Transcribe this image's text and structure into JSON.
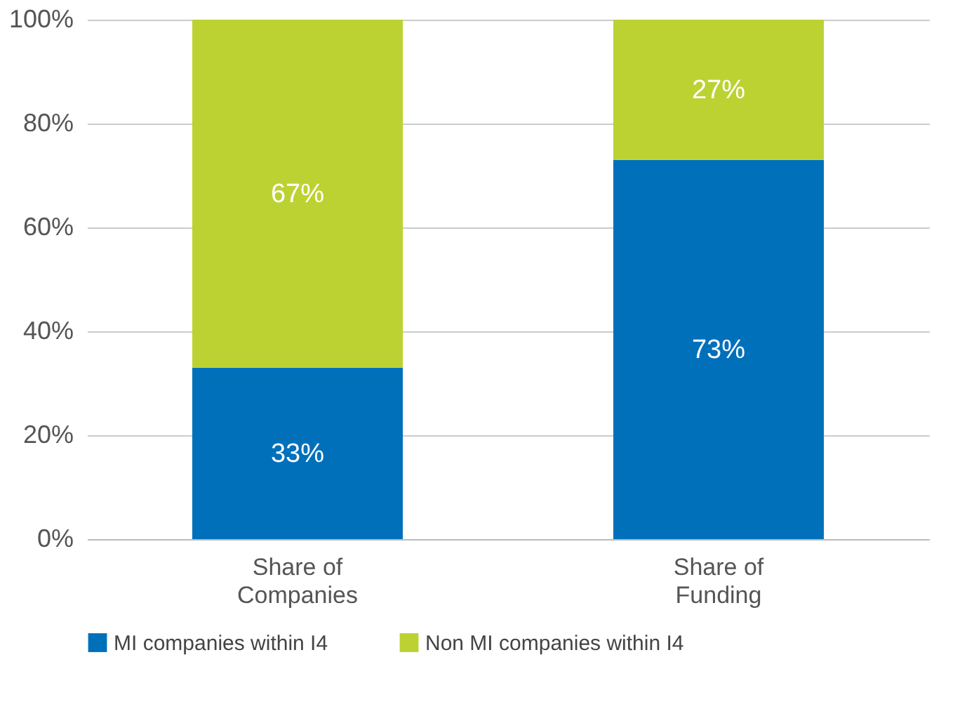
{
  "chart_data": {
    "type": "bar",
    "stacked": true,
    "categories": [
      "Share of Companies",
      "Share of Funding"
    ],
    "series": [
      {
        "name": "MI companies within I4",
        "color": "#0070bb",
        "values": [
          33,
          73
        ],
        "value_labels": [
          "33%",
          "73%"
        ]
      },
      {
        "name": "Non MI companies within I4",
        "color": "#bcd232",
        "values": [
          67,
          27
        ],
        "value_labels": [
          "67%",
          "27%"
        ]
      }
    ],
    "ylim": [
      0,
      100
    ],
    "yticks": [
      {
        "value": 0,
        "label": "0%"
      },
      {
        "value": 20,
        "label": "20%"
      },
      {
        "value": 40,
        "label": "40%"
      },
      {
        "value": 60,
        "label": "60%"
      },
      {
        "value": 80,
        "label": "80%"
      },
      {
        "value": 100,
        "label": "100%"
      }
    ],
    "grid": "y",
    "legend": "bottom"
  }
}
